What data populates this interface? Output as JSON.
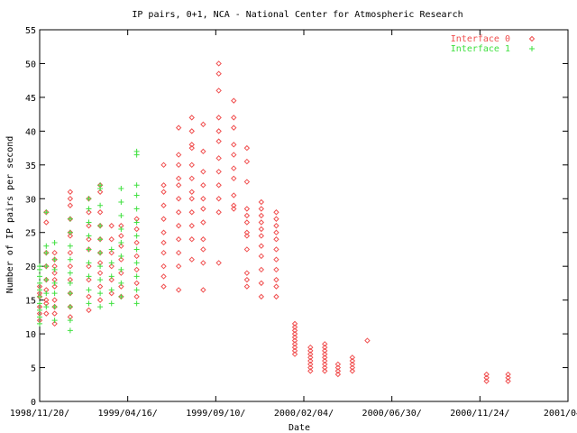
{
  "chart_data": {
    "type": "scatter",
    "title": "IP pairs, 0+1, NCA - National Center for Atmospheric Research",
    "xlabel": "Date",
    "ylabel": "Number of IP pairs per second",
    "x_ticks": [
      "1998/11/20/",
      "1999/04/16/",
      "1999/09/10/",
      "2000/02/04/",
      "2000/06/30/",
      "2000/11/24/",
      "2001/04/2"
    ],
    "x_tick_dates": [
      "1998-11-20",
      "1999-04-16",
      "1999-09-10",
      "2000-02-04",
      "2000-06-30",
      "2000-11-24",
      "2001-04-20"
    ],
    "xlim": [
      "1998-11-20",
      "2001-04-20"
    ],
    "y_ticks": [
      "0",
      "5",
      "10",
      "15",
      "20",
      "25",
      "30",
      "35",
      "40",
      "45",
      "50",
      "55"
    ],
    "ylim": [
      0,
      55
    ],
    "grid": false,
    "legend_position": "top-right",
    "series": [
      {
        "name": "Interface 0",
        "marker": "diamond",
        "color": "#f05050",
        "points": [
          [
            "1998-11-20",
            [
              12.0,
              14.0,
              15.5,
              16.0,
              17.0,
              13.0
            ]
          ],
          [
            "1998-12-01",
            [
              13.0,
              14.5,
              15.0,
              16.5,
              18.0,
              20.0,
              22.0,
              26.5,
              28.0
            ]
          ],
          [
            "1998-12-15",
            [
              11.5,
              13.0,
              14.0,
              15.0,
              17.0,
              18.0,
              19.0,
              20.0,
              21.0,
              22.0
            ]
          ],
          [
            "1999-01-10",
            [
              12.5,
              14.0,
              16.0,
              18.0,
              20.0,
              22.0,
              24.5,
              25.0,
              27.0,
              29.0,
              30.0,
              31.0
            ]
          ],
          [
            "1999-02-10",
            [
              13.5,
              15.5,
              18.0,
              20.0,
              22.5,
              24.0,
              26.0,
              28.0,
              30.0
            ]
          ],
          [
            "1999-03-01",
            [
              15.0,
              17.0,
              19.0,
              20.5,
              22.0,
              24.0,
              26.0,
              28.0,
              31.0,
              32.0
            ]
          ],
          [
            "1999-03-20",
            [
              16.0,
              18.0,
              20.0,
              22.0,
              24.0,
              26.0
            ]
          ],
          [
            "1999-04-05",
            [
              15.5,
              17.0,
              19.0,
              21.0,
              23.0,
              24.5,
              26.0
            ]
          ],
          [
            "1999-05-01",
            [
              15.5,
              17.5,
              19.5,
              21.5,
              23.5,
              25.5,
              27.0
            ]
          ],
          [
            "1999-06-15",
            [
              17.0,
              18.5,
              20.0,
              22.0,
              23.5,
              25.0,
              27.0,
              29.0,
              31.0,
              32.0,
              35.0
            ]
          ],
          [
            "1999-07-10",
            [
              16.5,
              20.0,
              22.0,
              24.0,
              26.0,
              28.0,
              30.0,
              32.0,
              33.0,
              35.0,
              36.5,
              40.5
            ]
          ],
          [
            "1999-08-01",
            [
              21.0,
              24.0,
              26.0,
              28.0,
              30.0,
              31.0,
              33.0,
              35.0,
              37.5,
              38.0,
              40.0,
              42.0
            ]
          ],
          [
            "1999-08-20",
            [
              16.5,
              20.5,
              22.5,
              24.0,
              26.5,
              28.5,
              30.0,
              32.0,
              34.0,
              37.0,
              41.0
            ]
          ],
          [
            "1999-09-15",
            [
              20.5,
              28.0,
              30.0,
              32.0,
              34.0,
              36.0,
              38.5,
              40.0,
              42.0,
              46.0,
              48.5,
              50.0
            ]
          ],
          [
            "1999-10-10",
            [
              28.5,
              29.0,
              30.5,
              33.0,
              34.5,
              36.5,
              38.0,
              40.5,
              42.0,
              44.5
            ]
          ],
          [
            "1999-11-01",
            [
              17.0,
              18.0,
              19.0,
              22.5,
              24.5,
              25.0,
              26.5,
              27.5,
              28.5,
              32.5,
              35.5,
              37.5
            ]
          ],
          [
            "1999-11-25",
            [
              15.5,
              17.5,
              19.5,
              21.5,
              23.0,
              24.5,
              25.5,
              26.5,
              27.5,
              28.5,
              29.5
            ]
          ],
          [
            "1999-12-20",
            [
              15.5,
              17.0,
              18.0,
              19.5,
              21.0,
              22.5,
              24.0,
              25.0,
              26.0,
              27.0,
              28.0
            ]
          ],
          [
            "2000-01-20",
            [
              7.0,
              7.5,
              8.0,
              8.5,
              9.0,
              9.5,
              10.0,
              10.5,
              11.0,
              11.5
            ]
          ],
          [
            "2000-02-15",
            [
              4.5,
              5.0,
              5.5,
              6.0,
              6.5,
              7.0,
              7.5,
              8.0
            ]
          ],
          [
            "2000-03-10",
            [
              4.5,
              5.0,
              5.5,
              6.0,
              6.5,
              7.0,
              7.5,
              8.0,
              8.5
            ]
          ],
          [
            "2000-04-01",
            [
              4.0,
              4.5,
              5.0,
              5.5
            ]
          ],
          [
            "2000-04-25",
            [
              4.5,
              5.0,
              5.5,
              6.0,
              6.5
            ]
          ],
          [
            "2000-05-20",
            [
              9.0
            ]
          ],
          [
            "2000-12-05",
            [
              3.0,
              3.5,
              4.0
            ]
          ],
          [
            "2001-01-10",
            [
              3.0,
              3.5,
              4.0
            ]
          ]
        ]
      },
      {
        "name": "Interface 1",
        "marker": "plus",
        "color": "#40e040",
        "points": [
          [
            "1998-11-20",
            [
              11.5,
              12.5,
              13.5,
              14.5,
              15.5,
              16.5,
              17.5,
              18.5,
              19.5,
              20.0
            ]
          ],
          [
            "1998-12-01",
            [
              14.0,
              16.0,
              18.0,
              20.0,
              22.0,
              23.0,
              28.0
            ]
          ],
          [
            "1998-12-15",
            [
              12.0,
              14.0,
              16.0,
              17.5,
              19.5,
              21.0,
              23.5
            ]
          ],
          [
            "1999-01-10",
            [
              10.5,
              12.0,
              14.0,
              16.0,
              17.5,
              19.0,
              21.0,
              23.0,
              25.0,
              27.0
            ]
          ],
          [
            "1999-02-10",
            [
              14.5,
              16.5,
              18.5,
              20.5,
              22.5,
              24.5,
              26.5,
              28.5,
              30.0
            ]
          ],
          [
            "1999-03-01",
            [
              14.0,
              16.0,
              18.0,
              20.0,
              22.0,
              24.0,
              26.0,
              29.0,
              31.5,
              32.0
            ]
          ],
          [
            "1999-03-20",
            [
              14.5,
              16.5,
              18.5,
              20.5,
              22.5
            ]
          ],
          [
            "1999-04-05",
            [
              15.5,
              17.5,
              19.5,
              21.5,
              23.5,
              25.5,
              27.5,
              29.5,
              31.5
            ]
          ],
          [
            "1999-05-01",
            [
              14.5,
              16.5,
              18.5,
              20.5,
              22.5,
              24.5,
              26.5,
              28.5,
              30.5,
              32.0,
              36.5,
              37.0
            ]
          ]
        ]
      }
    ]
  }
}
